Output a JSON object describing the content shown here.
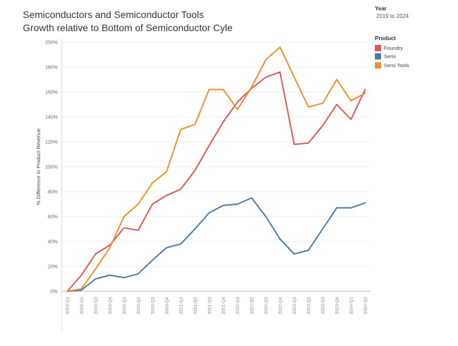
{
  "chart_data": {
    "type": "line",
    "title": "Semiconductors and Semiconductor Tools",
    "subtitle": "Growth relative to Bottom of Semiconductor Cyle",
    "ylabel": "% Difference in Product Revenue",
    "xlabel": "",
    "ylim": [
      0,
      200
    ],
    "yticks": [
      0,
      20,
      40,
      60,
      80,
      100,
      120,
      140,
      160,
      180,
      200
    ],
    "ytick_labels": [
      "0%",
      "20%",
      "40%",
      "60%",
      "80%",
      "100%",
      "120%",
      "140%",
      "160%",
      "180%",
      "200%"
    ],
    "grid": "horizontal",
    "legend_position": "right",
    "categories": [
      "2019-Q1",
      "2019-Q2",
      "2019-Q3",
      "2019-Q4",
      "2020-Q1",
      "2020-Q2",
      "2020-Q3",
      "2020-Q4",
      "2021-Q1",
      "2021-Q2",
      "2021-Q3",
      "2021-Q4",
      "2022-Q1",
      "2022-Q2",
      "2022-Q3",
      "2022-Q4",
      "2023-Q1",
      "2023-Q2",
      "2023-Q3",
      "2023-Q4",
      "2024-Q1",
      "2024-Q2"
    ],
    "series": [
      {
        "name": "Foundry",
        "color": "#e05759",
        "values": [
          0,
          13,
          30,
          37,
          51,
          49,
          70,
          77,
          82,
          97,
          117,
          136,
          152,
          163,
          172,
          176,
          118,
          119,
          133,
          150,
          138,
          162
        ]
      },
      {
        "name": "Semi",
        "color": "#4e79a7",
        "values": [
          0,
          1,
          10,
          13,
          11,
          14,
          25,
          35,
          38,
          50,
          63,
          69,
          70,
          75,
          60,
          42,
          30,
          33,
          50,
          67,
          67,
          71
        ]
      },
      {
        "name": "Semi Tools",
        "color": "#f28e2b",
        "values": [
          0,
          2,
          18,
          35,
          60,
          70,
          87,
          96,
          130,
          134,
          162,
          162,
          146,
          164,
          186,
          196,
          172,
          148,
          151,
          170,
          153,
          159
        ]
      }
    ]
  },
  "filter": {
    "label": "Year",
    "value": "2019 to 2024"
  },
  "legend": {
    "label": "Product"
  }
}
